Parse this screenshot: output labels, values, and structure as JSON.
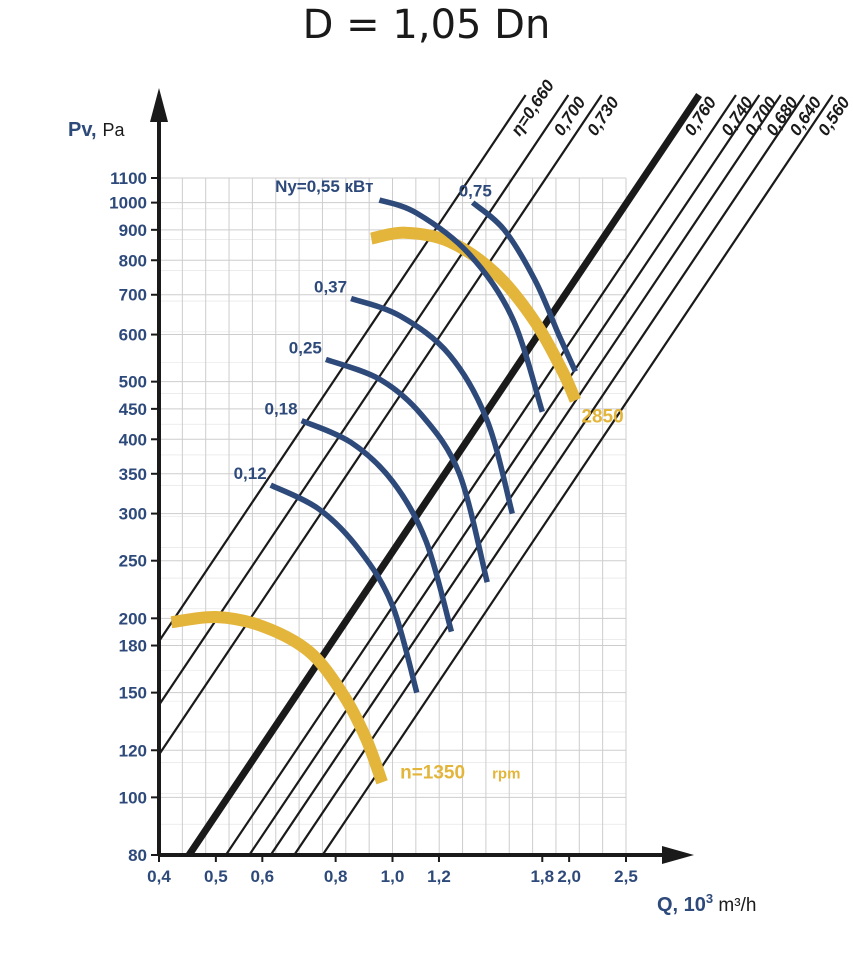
{
  "title": "D = 1,05 Dn",
  "chart_data": {
    "type": "line",
    "title": "D = 1,05 Dn",
    "xlabel": {
      "main": "Q, 10",
      "sup": "3",
      "unit": " m³/h"
    },
    "ylabel": {
      "main": "Pv,",
      "unit": "Pa"
    },
    "x_scale": "log",
    "y_scale": "log",
    "xlim": [
      0.4,
      2.5
    ],
    "ylim": [
      80,
      1100
    ],
    "grid": true,
    "x_ticks": [
      {
        "value": 0.4,
        "label": "0,4"
      },
      {
        "value": 0.5,
        "label": "0,5"
      },
      {
        "value": 0.6,
        "label": "0,6"
      },
      {
        "value": 0.8,
        "label": "0,8"
      },
      {
        "value": 1.0,
        "label": "1,0"
      },
      {
        "value": 1.2,
        "label": "1,2"
      },
      {
        "value": 1.8,
        "label": "1,8"
      },
      {
        "value": 2.0,
        "label": "2,0"
      },
      {
        "value": 2.5,
        "label": "2,5"
      }
    ],
    "y_ticks": [
      {
        "value": 80,
        "label": "80"
      },
      {
        "value": 100,
        "label": "100"
      },
      {
        "value": 120,
        "label": "120"
      },
      {
        "value": 150,
        "label": "150"
      },
      {
        "value": 180,
        "label": "180"
      },
      {
        "value": 200,
        "label": "200"
      },
      {
        "value": 250,
        "label": "250"
      },
      {
        "value": 300,
        "label": "300"
      },
      {
        "value": 350,
        "label": "350"
      },
      {
        "value": 400,
        "label": "400"
      },
      {
        "value": 450,
        "label": "450"
      },
      {
        "value": 500,
        "label": "500"
      },
      {
        "value": 600,
        "label": "600"
      },
      {
        "value": 700,
        "label": "700"
      },
      {
        "value": 800,
        "label": "800"
      },
      {
        "value": 900,
        "label": "900"
      },
      {
        "value": 1000,
        "label": "1000"
      },
      {
        "value": 1100,
        "label": "1100"
      }
    ],
    "efficiency_lines": [
      {
        "label": "η=0,660",
        "x0": 0.4,
        "y0": 183,
        "bold": false
      },
      {
        "label": "0,700",
        "x0": 0.4,
        "y0": 143,
        "bold": false
      },
      {
        "label": "0,730",
        "x0": 0.4,
        "y0": 118,
        "bold": false
      },
      {
        "label": "0,760",
        "x0": 0.45,
        "y0": 80,
        "bold": true
      },
      {
        "label": "0,740",
        "x0": 0.52,
        "y0": 80,
        "bold": false
      },
      {
        "label": "0,700",
        "x0": 0.57,
        "y0": 80,
        "bold": false
      },
      {
        "label": "0,680",
        "x0": 0.62,
        "y0": 80,
        "bold": false
      },
      {
        "label": "0,640",
        "x0": 0.68,
        "y0": 80,
        "bold": false
      },
      {
        "label": "0,560",
        "x0": 0.76,
        "y0": 80,
        "bold": false
      }
    ],
    "speed_curves": [
      {
        "label": "n=1350",
        "unit": "rpm",
        "points": [
          [
            0.42,
            197
          ],
          [
            0.5,
            201
          ],
          [
            0.6,
            194
          ],
          [
            0.72,
            176
          ],
          [
            0.82,
            150
          ],
          [
            0.9,
            126
          ],
          [
            0.96,
            106
          ]
        ]
      },
      {
        "label": "2850",
        "points": [
          [
            0.92,
            870
          ],
          [
            1.05,
            890
          ],
          [
            1.25,
            860
          ],
          [
            1.5,
            760
          ],
          [
            1.75,
            630
          ],
          [
            1.95,
            520
          ],
          [
            2.05,
            465
          ]
        ]
      }
    ],
    "power_curves": [
      {
        "label": "0,12",
        "points": [
          [
            0.62,
            335
          ],
          [
            0.75,
            305
          ],
          [
            0.88,
            260
          ],
          [
            1.0,
            210
          ],
          [
            1.1,
            150
          ]
        ]
      },
      {
        "label": "0,18",
        "points": [
          [
            0.7,
            430
          ],
          [
            0.85,
            395
          ],
          [
            1.0,
            340
          ],
          [
            1.14,
            270
          ],
          [
            1.26,
            190
          ]
        ]
      },
      {
        "label": "0,25",
        "points": [
          [
            0.77,
            545
          ],
          [
            0.95,
            505
          ],
          [
            1.12,
            440
          ],
          [
            1.3,
            350
          ],
          [
            1.45,
            230
          ]
        ]
      },
      {
        "label": "0,37",
        "points": [
          [
            0.85,
            690
          ],
          [
            1.03,
            645
          ],
          [
            1.25,
            555
          ],
          [
            1.45,
            430
          ],
          [
            1.6,
            300
          ]
        ]
      },
      {
        "label": "Ny=0,55 кВт",
        "points": [
          [
            0.95,
            1010
          ],
          [
            1.1,
            960
          ],
          [
            1.35,
            820
          ],
          [
            1.6,
            640
          ],
          [
            1.8,
            445
          ]
        ]
      },
      {
        "label": "0,75",
        "points": [
          [
            1.37,
            1000
          ],
          [
            1.55,
            900
          ],
          [
            1.75,
            740
          ],
          [
            1.92,
            600
          ],
          [
            2.05,
            520
          ]
        ]
      }
    ],
    "colors": {
      "efficiency": "#1a1a1a",
      "power": "#2e4a7a",
      "speed": "#e3b53b",
      "grid": "#cdcdcd",
      "axis": "#1a1a1a",
      "labels": "#2e4a7a"
    }
  }
}
